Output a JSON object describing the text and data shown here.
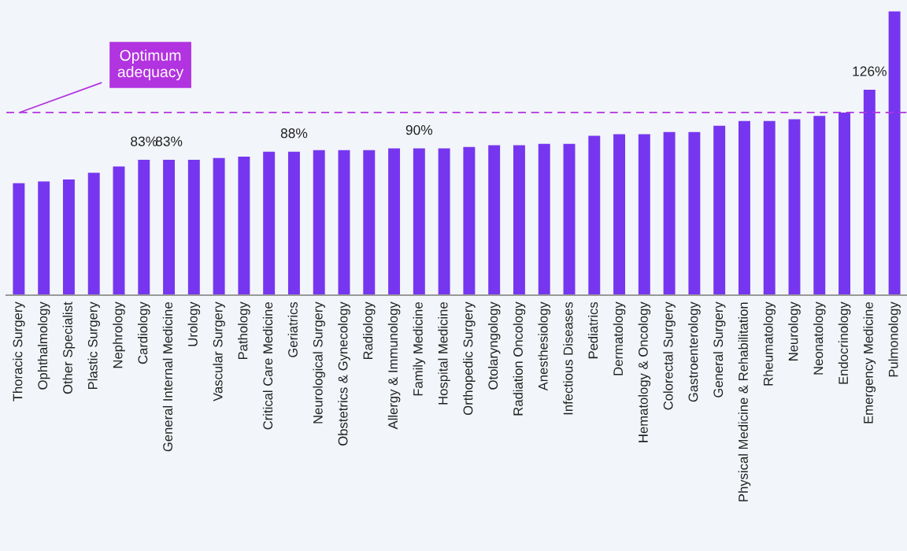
{
  "chart_data": {
    "type": "bar",
    "categories": [
      "Thoracic Surgery",
      "Ophthalmology",
      "Other Specialist",
      "Plastic Surgery",
      "Nephrology",
      "Cardiology",
      "General Internal Medicine",
      "Urology",
      "Vascular Surgery",
      "Pathology",
      "Critical Care Medicine",
      "Geriatrics",
      "Neurological Surgery",
      "Obstetrics & Gynecology",
      "Radiology",
      "Allergy & Immunology",
      "Family Medicine",
      "Hospital Medicine",
      "Orthopedic Surgery",
      "Otolaryngology",
      "Radiation Oncology",
      "Anesthesiology",
      "Infectious Diseases",
      "Pediatrics",
      "Dermatology",
      "Hematology & Oncology",
      "Colorectal Surgery",
      "Gastroenterology",
      "General Surgery",
      "Physical Medicine & Rehabilitation",
      "Rheumatology",
      "Neurology",
      "Neonatology",
      "Endocrinology",
      "Emergency Medicine",
      "Pulmonology"
    ],
    "values": [
      68.7,
      69.8,
      70.9,
      75,
      78.9,
      83,
      83,
      83,
      84.1,
      85,
      88,
      88,
      88.9,
      88.9,
      88.9,
      90,
      90,
      90,
      90.9,
      91.9,
      91.9,
      92.8,
      92.8,
      97.8,
      98.7,
      98.7,
      100,
      100,
      103.9,
      106.8,
      106.8,
      107.9,
      109.9,
      112,
      126,
      174
    ],
    "value_labels": [
      null,
      null,
      null,
      null,
      null,
      "83%",
      "83%",
      null,
      null,
      null,
      null,
      "88%",
      null,
      null,
      null,
      null,
      "90%",
      null,
      null,
      null,
      null,
      null,
      null,
      null,
      null,
      null,
      null,
      null,
      null,
      null,
      null,
      null,
      null,
      null,
      "126%",
      null
    ],
    "color": "#7636f0",
    "ylim": [
      0,
      181
    ],
    "ref_lines": [
      {
        "axis": "y",
        "value": 112,
        "label": "Optimum\nadequacy",
        "color": "#b233e0",
        "line_style": "dashed"
      }
    ],
    "grid": false
  }
}
